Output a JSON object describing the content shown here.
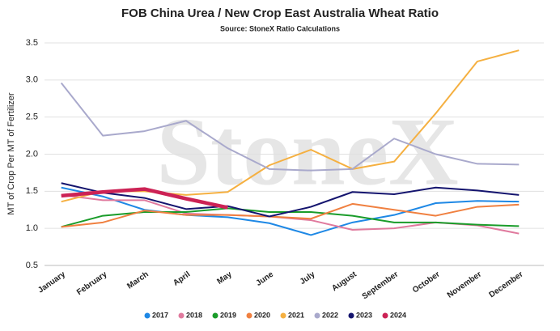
{
  "chart_data": {
    "type": "line",
    "title": "FOB China Urea / New Crop East Australia Wheat Ratio",
    "subtitle": "Source: StoneX Ratio Calculations",
    "watermark": "StoneX",
    "y_label": "MT of Crop Per MT of Fertilizer",
    "categories": [
      "January",
      "February",
      "March",
      "April",
      "May",
      "June",
      "July",
      "August",
      "September",
      "October",
      "November",
      "December"
    ],
    "ylim": [
      0.5,
      3.5
    ],
    "yticks": [
      0.5,
      {
        "value": 1,
        "label": "1.0"
      },
      1.5,
      {
        "value": 2,
        "label": "2.0"
      },
      2.5,
      {
        "value": 3,
        "label": "3.0"
      },
      3.5
    ],
    "grid": true,
    "legend": "bottom",
    "series": [
      {
        "name": "2017",
        "color": "#1e88e5",
        "values": [
          1.55,
          1.43,
          1.25,
          1.18,
          1.15,
          1.07,
          0.91,
          1.08,
          1.18,
          1.34,
          1.37,
          1.36
        ]
      },
      {
        "name": "2018",
        "color": "#e07a9e",
        "values": [
          1.45,
          1.38,
          1.38,
          1.2,
          1.18,
          1.16,
          1.11,
          0.98,
          1.0,
          1.08,
          1.04,
          0.93
        ]
      },
      {
        "name": "2019",
        "color": "#1a9c2a",
        "values": [
          1.02,
          1.17,
          1.22,
          1.22,
          1.27,
          1.22,
          1.22,
          1.17,
          1.08,
          1.08,
          1.05,
          1.03
        ]
      },
      {
        "name": "2020",
        "color": "#f08040",
        "values": [
          1.02,
          1.08,
          1.24,
          1.18,
          1.18,
          1.16,
          1.13,
          1.33,
          1.25,
          1.17,
          1.29,
          1.32
        ]
      },
      {
        "name": "2021",
        "color": "#f5b041",
        "values": [
          1.36,
          1.5,
          1.5,
          1.45,
          1.49,
          1.85,
          2.06,
          1.8,
          1.9,
          2.55,
          3.25,
          3.4
        ]
      },
      {
        "name": "2022",
        "color": "#a9a9cc",
        "values": [
          2.96,
          2.25,
          2.31,
          2.45,
          2.08,
          1.8,
          1.78,
          1.8,
          2.21,
          2.0,
          1.87,
          1.86
        ]
      },
      {
        "name": "2023",
        "color": "#14146e",
        "values": [
          1.61,
          1.48,
          1.41,
          1.26,
          1.3,
          1.16,
          1.29,
          1.49,
          1.46,
          1.55,
          1.51,
          1.45
        ]
      },
      {
        "name": "2024",
        "color": "#cc2255",
        "values": [
          1.44,
          1.49,
          1.53,
          1.4,
          1.28,
          null,
          null,
          null,
          null,
          null,
          null,
          null
        ]
      }
    ]
  }
}
